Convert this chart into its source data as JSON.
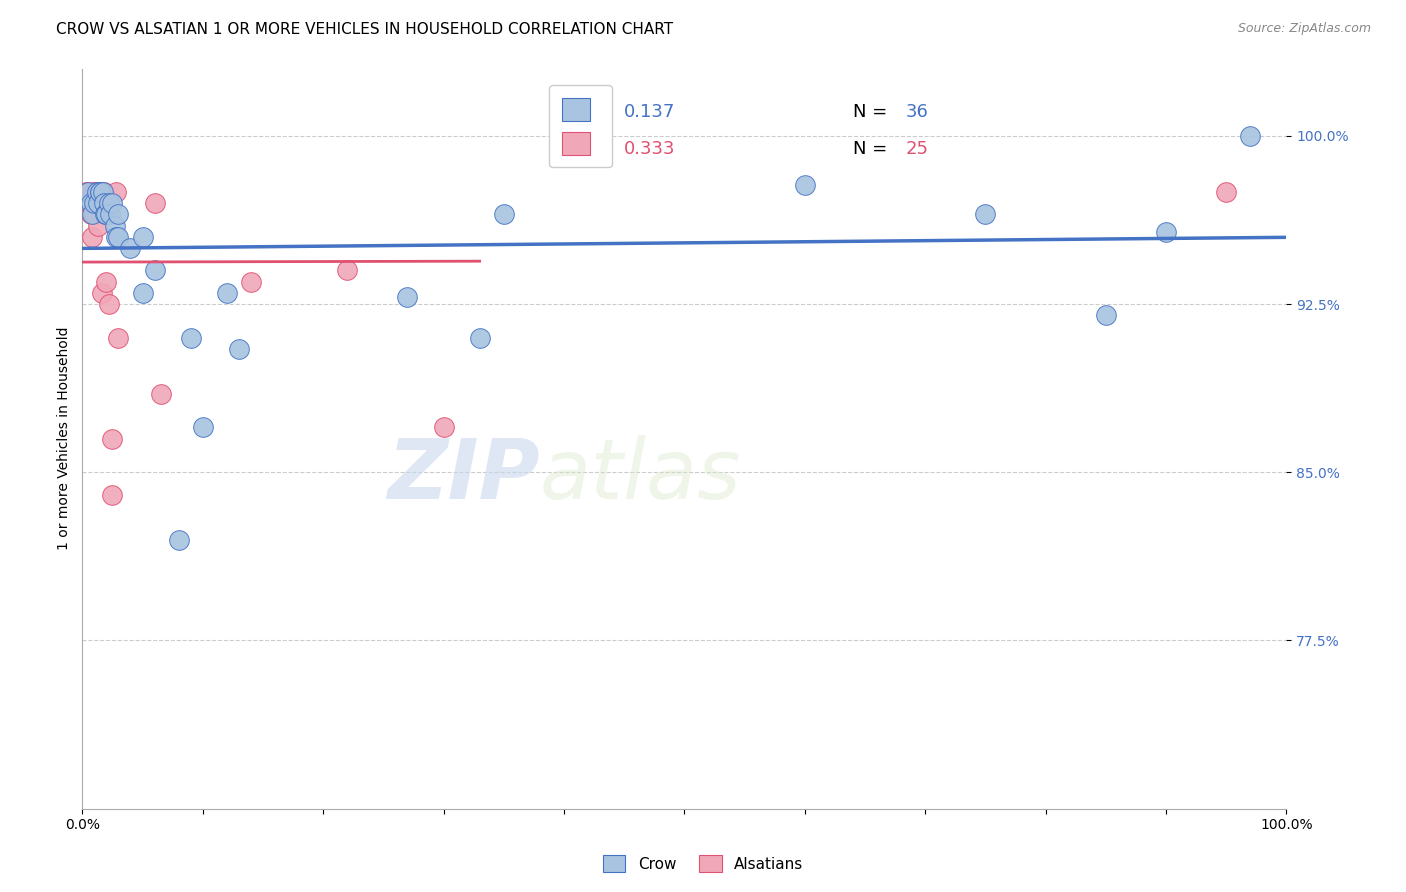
{
  "title": "CROW VS ALSATIAN 1 OR MORE VEHICLES IN HOUSEHOLD CORRELATION CHART",
  "source": "Source: ZipAtlas.com",
  "ylabel": "1 or more Vehicles in Household",
  "xlabel": "",
  "crow_r": 0.137,
  "crow_n": 36,
  "alsatian_r": 0.333,
  "alsatian_n": 25,
  "crow_color": "#a8c4e0",
  "alsatian_color": "#f0a8b8",
  "crow_line_color": "#4472c4",
  "alsatian_line_color": "#e05070",
  "xlim": [
    0.0,
    1.0
  ],
  "ylim": [
    0.7,
    1.03
  ],
  "yticks": [
    0.775,
    0.85,
    0.925,
    1.0
  ],
  "ytick_labels": [
    "77.5%",
    "85.0%",
    "92.5%",
    "100.0%"
  ],
  "grid_color": "#cccccc",
  "watermark_zip": "ZIP",
  "watermark_atlas": "atlas",
  "crow_x": [
    0.005,
    0.007,
    0.008,
    0.01,
    0.012,
    0.013,
    0.015,
    0.015,
    0.017,
    0.018,
    0.019,
    0.02,
    0.022,
    0.023,
    0.025,
    0.027,
    0.028,
    0.03,
    0.03,
    0.04,
    0.05,
    0.05,
    0.06,
    0.08,
    0.09,
    0.1,
    0.12,
    0.13,
    0.27,
    0.33,
    0.35,
    0.6,
    0.75,
    0.85,
    0.9,
    0.97
  ],
  "crow_y": [
    0.975,
    0.97,
    0.965,
    0.97,
    0.975,
    0.97,
    0.975,
    0.975,
    0.975,
    0.97,
    0.965,
    0.965,
    0.97,
    0.965,
    0.97,
    0.96,
    0.955,
    0.965,
    0.955,
    0.95,
    0.955,
    0.93,
    0.94,
    0.82,
    0.91,
    0.87,
    0.93,
    0.905,
    0.928,
    0.91,
    0.965,
    0.978,
    0.965,
    0.92,
    0.957,
    1.0
  ],
  "alsatian_x": [
    0.003,
    0.005,
    0.007,
    0.008,
    0.009,
    0.01,
    0.011,
    0.012,
    0.013,
    0.015,
    0.016,
    0.018,
    0.019,
    0.02,
    0.022,
    0.025,
    0.025,
    0.028,
    0.03,
    0.06,
    0.065,
    0.14,
    0.22,
    0.3,
    0.95
  ],
  "alsatian_y": [
    0.975,
    0.975,
    0.965,
    0.955,
    0.975,
    0.965,
    0.975,
    0.975,
    0.96,
    0.975,
    0.93,
    0.975,
    0.97,
    0.935,
    0.925,
    0.84,
    0.865,
    0.975,
    0.91,
    0.97,
    0.885,
    0.935,
    0.94,
    0.87,
    0.975
  ],
  "title_fontsize": 11,
  "source_fontsize": 9,
  "axis_label_fontsize": 10,
  "tick_fontsize": 10,
  "legend_fontsize": 13,
  "watermark_fontsize": 60,
  "marker_size": 200
}
